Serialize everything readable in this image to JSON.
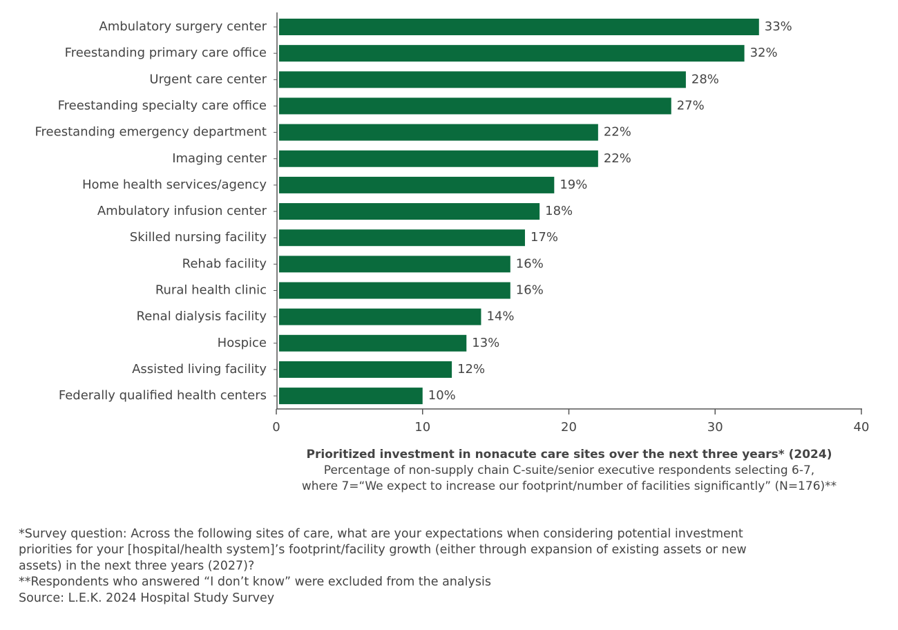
{
  "chart_data": {
    "type": "bar",
    "orientation": "horizontal",
    "categories": [
      "Ambulatory surgery center",
      "Freestanding primary care office",
      "Urgent care center",
      "Freestanding specialty care office",
      "Freestanding emergency department",
      "Imaging center",
      "Home health services/agency",
      "Ambulatory infusion center",
      "Skilled nursing facility",
      "Rehab facility",
      "Rural health clinic",
      "Renal dialysis facility",
      "Hospice",
      "Assisted living facility",
      "Federally qualified health centers"
    ],
    "values": [
      33,
      32,
      28,
      27,
      22,
      22,
      19,
      18,
      17,
      16,
      16,
      14,
      13,
      12,
      10
    ],
    "value_labels": [
      "33%",
      "32%",
      "28%",
      "27%",
      "22%",
      "22%",
      "19%",
      "18%",
      "17%",
      "16%",
      "16%",
      "14%",
      "13%",
      "12%",
      "10%"
    ],
    "color": "#0a6b3d",
    "xlim": [
      0,
      40
    ],
    "xticks": [
      0,
      10,
      20,
      30,
      40
    ],
    "xlabel": "Prioritized investment in nonacute care sites over the next three years* (2024)",
    "subtitle": [
      "Percentage of non-supply chain C-suite/senior executive respondents selecting 6-7,",
      "where 7=“We expect to increase our footprint/number of facilities significantly” (N=176)**"
    ]
  },
  "footnotes": [
    "*Survey question: Across the following sites of care, what are your expectations when considering potential investment",
    "priorities for your [hospital/health system]’s footprint/facility growth (either through expansion of existing assets or new",
    "assets) in the next three years (2027)?",
    "**Respondents who answered “I don’t know” were excluded from the analysis",
    "Source: L.E.K. 2024 Hospital Study Survey"
  ]
}
